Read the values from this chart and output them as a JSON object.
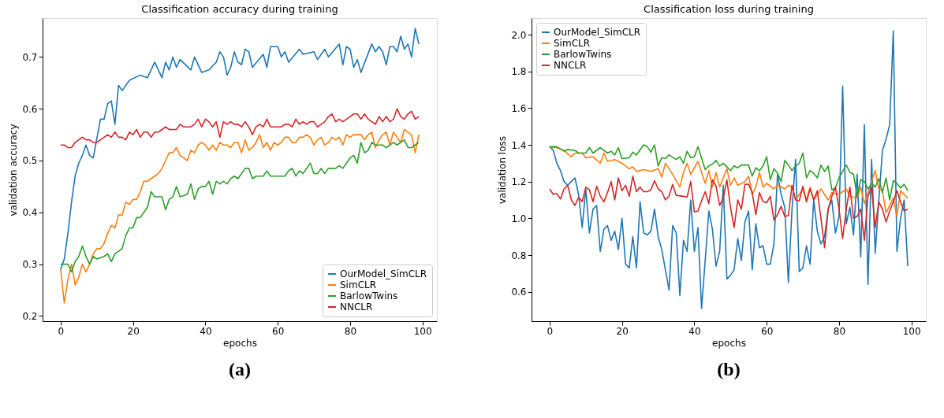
{
  "chart_data": [
    {
      "type": "line",
      "title": "Classification accuracy during training",
      "xlabel": "epochs",
      "ylabel": "validation accuracy",
      "xlim": [
        -5,
        104
      ],
      "xticks": [
        0,
        20,
        40,
        60,
        80,
        100
      ],
      "ylim": [
        0.19,
        0.775
      ],
      "yticks": [
        0.2,
        0.3,
        0.4,
        0.5,
        0.6,
        0.7
      ],
      "grid": false,
      "legend": "bottom right",
      "annotations": [
        "(a)"
      ],
      "series": [
        {
          "name": "OurModel_SimCLR",
          "color": "#1f77b4",
          "x": [
            0,
            1,
            2,
            3,
            4,
            5,
            6,
            7,
            8,
            9,
            11,
            12,
            13,
            14,
            15,
            16,
            17,
            19,
            22,
            24,
            26,
            28,
            29,
            30,
            31,
            32,
            33,
            36,
            37,
            39,
            41,
            43,
            44,
            45,
            46,
            47,
            48,
            49,
            50,
            51,
            52,
            53,
            56,
            57,
            58,
            60,
            61,
            62,
            63,
            66,
            67,
            70,
            71,
            73,
            74,
            77,
            78,
            79,
            80,
            81,
            82,
            83,
            86,
            87,
            88,
            89,
            90,
            91,
            92,
            93,
            94,
            95,
            96,
            97,
            98,
            99
          ],
          "values": [
            0.29,
            0.31,
            0.36,
            0.42,
            0.47,
            0.495,
            0.51,
            0.53,
            0.51,
            0.505,
            0.58,
            0.58,
            0.61,
            0.615,
            0.57,
            0.645,
            0.635,
            0.655,
            0.665,
            0.66,
            0.69,
            0.66,
            0.69,
            0.675,
            0.7,
            0.68,
            0.695,
            0.675,
            0.7,
            0.67,
            0.675,
            0.69,
            0.71,
            0.7,
            0.665,
            0.68,
            0.71,
            0.69,
            0.685,
            0.715,
            0.71,
            0.68,
            0.705,
            0.68,
            0.72,
            0.72,
            0.7,
            0.71,
            0.69,
            0.715,
            0.705,
            0.71,
            0.695,
            0.715,
            0.7,
            0.725,
            0.685,
            0.72,
            0.715,
            0.68,
            0.695,
            0.67,
            0.725,
            0.71,
            0.72,
            0.71,
            0.685,
            0.72,
            0.72,
            0.71,
            0.74,
            0.715,
            0.725,
            0.7,
            0.755,
            0.725
          ]
        },
        {
          "name": "SimCLR",
          "color": "#ff7f0e",
          "x": [
            0,
            1,
            2,
            3,
            4,
            5,
            6,
            7,
            8,
            9,
            10,
            11,
            12,
            13,
            14,
            15,
            16,
            17,
            18,
            19,
            20,
            21,
            22,
            23,
            24,
            25,
            26,
            27,
            28,
            29,
            30,
            31,
            32,
            33,
            34,
            35,
            36,
            37,
            38,
            39,
            40,
            41,
            42,
            43,
            44,
            45,
            46,
            47,
            48,
            49,
            50,
            51,
            52,
            53,
            54,
            55,
            56,
            57,
            58,
            59,
            60,
            61,
            62,
            63,
            64,
            65,
            66,
            67,
            68,
            69,
            70,
            71,
            72,
            73,
            74,
            75,
            76,
            77,
            78,
            79,
            80,
            81,
            82,
            83,
            84,
            85,
            86,
            87,
            88,
            89,
            90,
            91,
            92,
            93,
            94,
            95,
            96,
            97,
            98,
            99
          ],
          "values": [
            0.29,
            0.225,
            0.27,
            0.3,
            0.26,
            0.275,
            0.3,
            0.285,
            0.3,
            0.32,
            0.33,
            0.33,
            0.34,
            0.36,
            0.375,
            0.37,
            0.395,
            0.395,
            0.42,
            0.415,
            0.425,
            0.425,
            0.44,
            0.46,
            0.46,
            0.465,
            0.47,
            0.475,
            0.485,
            0.5,
            0.515,
            0.515,
            0.525,
            0.51,
            0.505,
            0.5,
            0.52,
            0.515,
            0.53,
            0.535,
            0.53,
            0.52,
            0.53,
            0.52,
            0.535,
            0.53,
            0.53,
            0.525,
            0.535,
            0.535,
            0.515,
            0.54,
            0.52,
            0.525,
            0.535,
            0.55,
            0.525,
            0.535,
            0.52,
            0.535,
            0.53,
            0.535,
            0.545,
            0.545,
            0.535,
            0.535,
            0.545,
            0.545,
            0.55,
            0.545,
            0.53,
            0.54,
            0.545,
            0.53,
            0.535,
            0.545,
            0.54,
            0.545,
            0.53,
            0.55,
            0.545,
            0.55,
            0.55,
            0.55,
            0.54,
            0.55,
            0.555,
            0.525,
            0.54,
            0.55,
            0.555,
            0.53,
            0.555,
            0.545,
            0.535,
            0.56,
            0.555,
            0.55,
            0.515,
            0.55
          ]
        },
        {
          "name": "BarlowTwins",
          "color": "#2ca02c",
          "x": [
            0,
            1,
            2,
            3,
            4,
            5,
            6,
            7,
            8,
            9,
            10,
            12,
            13,
            14,
            15,
            16,
            17,
            18,
            19,
            20,
            21,
            22,
            23,
            24,
            25,
            26,
            28,
            29,
            30,
            31,
            32,
            33,
            35,
            36,
            37,
            38,
            39,
            40,
            41,
            42,
            43,
            44,
            45,
            46,
            47,
            48,
            49,
            50,
            51,
            52,
            53,
            54,
            55,
            56,
            57,
            58,
            60,
            62,
            63,
            64,
            65,
            66,
            67,
            68,
            69,
            70,
            71,
            72,
            73,
            74,
            76,
            77,
            78,
            79,
            80,
            81,
            82,
            83,
            84,
            85,
            86,
            87,
            88,
            89,
            90,
            91,
            92,
            93,
            94,
            95,
            96,
            97,
            98,
            99
          ],
          "values": [
            0.3,
            0.3,
            0.3,
            0.285,
            0.305,
            0.315,
            0.335,
            0.315,
            0.3,
            0.315,
            0.31,
            0.315,
            0.32,
            0.305,
            0.32,
            0.325,
            0.33,
            0.355,
            0.37,
            0.37,
            0.39,
            0.39,
            0.4,
            0.41,
            0.44,
            0.43,
            0.43,
            0.405,
            0.425,
            0.43,
            0.45,
            0.43,
            0.435,
            0.455,
            0.425,
            0.445,
            0.45,
            0.45,
            0.46,
            0.435,
            0.46,
            0.455,
            0.46,
            0.455,
            0.465,
            0.47,
            0.465,
            0.475,
            0.485,
            0.485,
            0.465,
            0.47,
            0.47,
            0.47,
            0.48,
            0.47,
            0.47,
            0.47,
            0.48,
            0.485,
            0.47,
            0.48,
            0.475,
            0.485,
            0.495,
            0.475,
            0.475,
            0.485,
            0.475,
            0.485,
            0.485,
            0.49,
            0.485,
            0.495,
            0.505,
            0.51,
            0.495,
            0.535,
            0.515,
            0.52,
            0.535,
            0.53,
            0.53,
            0.53,
            0.525,
            0.53,
            0.535,
            0.53,
            0.535,
            0.54,
            0.525,
            0.525,
            0.53,
            0.535
          ]
        },
        {
          "name": "NNCLR",
          "color": "#d62728",
          "x": [
            0,
            1,
            2,
            3,
            4,
            5,
            6,
            7,
            8,
            9,
            10,
            11,
            12,
            13,
            14,
            15,
            16,
            17,
            18,
            19,
            20,
            21,
            22,
            23,
            24,
            25,
            26,
            27,
            28,
            29,
            30,
            32,
            33,
            34,
            35,
            36,
            37,
            38,
            39,
            40,
            41,
            42,
            43,
            44,
            45,
            46,
            47,
            48,
            49,
            50,
            51,
            52,
            53,
            54,
            55,
            56,
            57,
            58,
            59,
            60,
            61,
            62,
            63,
            64,
            65,
            66,
            67,
            68,
            69,
            70,
            71,
            72,
            73,
            74,
            75,
            76,
            77,
            78,
            79,
            80,
            81,
            82,
            83,
            84,
            85,
            86,
            87,
            88,
            89,
            90,
            91,
            92,
            93,
            94,
            95,
            96,
            97,
            98,
            99
          ],
          "values": [
            0.53,
            0.53,
            0.525,
            0.525,
            0.535,
            0.54,
            0.545,
            0.54,
            0.54,
            0.535,
            0.535,
            0.54,
            0.545,
            0.55,
            0.545,
            0.555,
            0.545,
            0.545,
            0.54,
            0.555,
            0.55,
            0.56,
            0.545,
            0.555,
            0.555,
            0.545,
            0.555,
            0.555,
            0.56,
            0.565,
            0.56,
            0.56,
            0.57,
            0.565,
            0.565,
            0.565,
            0.57,
            0.58,
            0.565,
            0.58,
            0.575,
            0.565,
            0.575,
            0.545,
            0.575,
            0.57,
            0.575,
            0.57,
            0.57,
            0.565,
            0.575,
            0.565,
            0.55,
            0.565,
            0.57,
            0.565,
            0.58,
            0.565,
            0.565,
            0.565,
            0.565,
            0.57,
            0.57,
            0.565,
            0.58,
            0.57,
            0.575,
            0.57,
            0.575,
            0.575,
            0.565,
            0.57,
            0.575,
            0.585,
            0.59,
            0.575,
            0.58,
            0.575,
            0.58,
            0.585,
            0.59,
            0.59,
            0.58,
            0.59,
            0.58,
            0.575,
            0.57,
            0.585,
            0.575,
            0.585,
            0.575,
            0.58,
            0.6,
            0.585,
            0.58,
            0.59,
            0.595,
            0.58,
            0.585
          ]
        }
      ]
    },
    {
      "type": "line",
      "title": "Classification loss during training",
      "xlabel": "epochs",
      "ylabel": "validation loss",
      "xlim": [
        -5,
        104
      ],
      "xticks": [
        0,
        20,
        40,
        60,
        80,
        100
      ],
      "ylim": [
        0.44,
        2.09
      ],
      "yticks": [
        0.6,
        0.8,
        {
          "value": 1,
          "label": "1.0"
        },
        1.2,
        1.4,
        1.6,
        1.8,
        {
          "value": 2,
          "label": "2.0"
        }
      ],
      "grid": false,
      "legend": "top left",
      "annotations": [
        "(b)"
      ],
      "series": [
        {
          "name": "OurModel_SimCLR",
          "color": "#1f77b4",
          "x": [
            0,
            1,
            2,
            3,
            4,
            5,
            6,
            7,
            8,
            9,
            10,
            11,
            12,
            13,
            14,
            15,
            16,
            17,
            18,
            19,
            20,
            21,
            22,
            23,
            24,
            25,
            26,
            27,
            28,
            29,
            30,
            31,
            32,
            33,
            34,
            35,
            36,
            37,
            38,
            39,
            40,
            41,
            42,
            43,
            44,
            45,
            46,
            47,
            48,
            49,
            50,
            51,
            52,
            53,
            54,
            55,
            56,
            57,
            58,
            59,
            60,
            61,
            62,
            63,
            64,
            65,
            66,
            67,
            68,
            69,
            70,
            71,
            72,
            73,
            74,
            75,
            76,
            77,
            78,
            79,
            80,
            81,
            82,
            83,
            84,
            85,
            86,
            87,
            88,
            89,
            90,
            91,
            92,
            93,
            94,
            95,
            96,
            97,
            98,
            99
          ],
          "values": [
            1.39,
            1.37,
            1.3,
            1.26,
            1.2,
            1.18,
            1.2,
            1.22,
            1.13,
            0.95,
            1.16,
            0.92,
            1.05,
            1.07,
            0.82,
            0.94,
            0.96,
            0.88,
            0.93,
            0.83,
            1.0,
            0.75,
            0.73,
            0.9,
            0.73,
            1.09,
            0.92,
            0.91,
            0.93,
            1.05,
            0.9,
            0.83,
            0.72,
            0.61,
            0.96,
            0.92,
            0.58,
            0.88,
            0.82,
            1.1,
            0.82,
            0.95,
            0.51,
            0.77,
            1.04,
            0.94,
            0.74,
            0.82,
            1.18,
            0.67,
            0.69,
            0.72,
            0.89,
            0.77,
            0.98,
            1.04,
            0.72,
            0.97,
            0.84,
            0.85,
            0.75,
            0.75,
            0.86,
            1.24,
            1.13,
            1.06,
            0.65,
            1.05,
            1.32,
            0.71,
            0.73,
            0.85,
            0.75,
            1.1,
            0.93,
            0.86,
            0.9,
            1.05,
            1.1,
            0.92,
            1.01,
            1.72,
            0.97,
            1.06,
            0.91,
            1.24,
            0.79,
            1.51,
            0.64,
            1.32,
            0.81,
            1.1,
            1.37,
            1.43,
            1.51,
            2.02,
            0.82,
            1.0,
            1.1,
            0.74
          ]
        },
        {
          "name": "SimCLR",
          "color": "#ff7f0e",
          "x": [
            0,
            2,
            4,
            5,
            6,
            7,
            9,
            10,
            12,
            14,
            15,
            16,
            18,
            20,
            22,
            23,
            24,
            26,
            28,
            30,
            31,
            32,
            34,
            36,
            37,
            38,
            39,
            41,
            43,
            44,
            45,
            46,
            47,
            49,
            50,
            51,
            52,
            54,
            55,
            56,
            57,
            58,
            59,
            60,
            62,
            63,
            65,
            66,
            67,
            68,
            70,
            71,
            72,
            73,
            75,
            77,
            78,
            80,
            82,
            83,
            85,
            86,
            87,
            89,
            90,
            91,
            92,
            93,
            95,
            96,
            97,
            99
          ],
          "values": [
            1.385,
            1.385,
            1.37,
            1.35,
            1.335,
            1.355,
            1.355,
            1.33,
            1.335,
            1.3,
            1.355,
            1.31,
            1.32,
            1.3,
            1.27,
            1.28,
            1.255,
            1.265,
            1.255,
            1.27,
            1.225,
            1.3,
            1.24,
            1.17,
            1.25,
            1.3,
            1.24,
            1.31,
            1.19,
            1.26,
            1.17,
            1.25,
            1.17,
            1.27,
            1.18,
            1.22,
            1.18,
            1.2,
            1.23,
            1.13,
            1.17,
            1.25,
            1.17,
            1.19,
            1.16,
            1.18,
            1.16,
            1.18,
            1.17,
            1.1,
            1.16,
            1.1,
            1.17,
            1.1,
            1.16,
            1.1,
            1.14,
            1.13,
            1.16,
            1.12,
            1.11,
            1.17,
            1.08,
            1.2,
            1.26,
            1.16,
            1.15,
            1.03,
            1.11,
            1.01,
            1.15,
            1.11
          ]
        },
        {
          "name": "BarlowTwins",
          "color": "#2ca02c",
          "x": [
            0,
            2,
            4,
            5,
            7,
            8,
            10,
            11,
            12,
            14,
            16,
            17,
            18,
            19,
            20,
            22,
            23,
            24,
            26,
            27,
            28,
            29,
            30,
            31,
            32,
            33,
            35,
            36,
            37,
            38,
            39,
            40,
            41,
            43,
            44,
            45,
            46,
            47,
            48,
            50,
            51,
            52,
            53,
            55,
            56,
            57,
            58,
            59,
            60,
            61,
            62,
            63,
            64,
            65,
            66,
            67,
            68,
            69,
            70,
            71,
            72,
            73,
            74,
            75,
            76,
            77,
            78,
            79,
            80,
            81,
            82,
            83,
            84,
            85,
            86,
            87,
            88,
            89,
            90,
            91,
            92,
            93,
            94,
            95,
            96,
            97,
            98,
            99
          ],
          "values": [
            1.39,
            1.39,
            1.365,
            1.375,
            1.37,
            1.355,
            1.355,
            1.385,
            1.355,
            1.385,
            1.355,
            1.365,
            1.345,
            1.385,
            1.325,
            1.33,
            1.36,
            1.345,
            1.4,
            1.39,
            1.36,
            1.4,
            1.285,
            1.33,
            1.325,
            1.345,
            1.32,
            1.335,
            1.3,
            1.365,
            1.33,
            1.335,
            1.39,
            1.265,
            1.285,
            1.295,
            1.315,
            1.285,
            1.3,
            1.26,
            1.285,
            1.275,
            1.29,
            1.29,
            1.23,
            1.275,
            1.26,
            1.285,
            1.335,
            1.21,
            1.27,
            1.245,
            1.2,
            1.315,
            1.29,
            1.26,
            1.285,
            1.3,
            1.355,
            1.22,
            1.26,
            1.245,
            1.22,
            1.29,
            1.255,
            1.285,
            1.155,
            1.165,
            1.22,
            1.255,
            1.29,
            1.25,
            1.24,
            1.12,
            1.21,
            1.2,
            1.16,
            1.19,
            1.17,
            1.215,
            1.14,
            1.22,
            1.1,
            1.205,
            1.19,
            1.165,
            1.185,
            1.15
          ]
        },
        {
          "name": "NNCLR",
          "color": "#d62728",
          "x": [
            0,
            1,
            2,
            3,
            4,
            5,
            6,
            7,
            8,
            9,
            10,
            11,
            12,
            13,
            14,
            15,
            16,
            17,
            18,
            19,
            20,
            21,
            22,
            23,
            24,
            25,
            26,
            27,
            28,
            29,
            30,
            31,
            32,
            33,
            34,
            35,
            37,
            38,
            39,
            40,
            41,
            42,
            43,
            44,
            45,
            46,
            47,
            48,
            49,
            50,
            51,
            52,
            53,
            54,
            55,
            56,
            57,
            58,
            59,
            60,
            61,
            62,
            63,
            64,
            65,
            66,
            67,
            68,
            69,
            70,
            71,
            72,
            73,
            74,
            75,
            76,
            77,
            78,
            79,
            80,
            81,
            82,
            83,
            84,
            85,
            86,
            87,
            88,
            89,
            90,
            91,
            92,
            93,
            94,
            95,
            96,
            97,
            98,
            99
          ],
          "values": [
            1.16,
            1.13,
            1.135,
            1.105,
            1.16,
            1.18,
            1.1,
            1.07,
            1.115,
            1.09,
            1.17,
            1.155,
            1.09,
            1.175,
            1.12,
            1.09,
            1.14,
            1.2,
            1.1,
            1.22,
            1.15,
            1.18,
            1.12,
            1.23,
            1.145,
            1.17,
            1.145,
            1.145,
            1.155,
            1.205,
            1.16,
            1.145,
            1.1,
            1.12,
            1.185,
            1.125,
            1.12,
            1.115,
            1.2,
            1.035,
            1.04,
            1.095,
            1.145,
            1.08,
            1.21,
            1.175,
            1.07,
            1.11,
            1.21,
            1.06,
            0.95,
            1.1,
            1.05,
            1.185,
            1.185,
            1.14,
            1.02,
            1.14,
            1.09,
            1.085,
            1.12,
            0.99,
            1.02,
            1.065,
            1.01,
            1.015,
            1.18,
            1.1,
            1.095,
            1.175,
            1.09,
            1.16,
            1.1,
            1.15,
            1.0,
            0.84,
            1.05,
            1.12,
            1.17,
            1.05,
            0.89,
            1.05,
            1.17,
            1.0,
            1.01,
            1.05,
            0.88,
            1.12,
            1.17,
            0.95,
            1.09,
            1.05,
            0.98,
            1.04,
            1.09,
            1.15,
            1.09,
            1.04,
            1.05
          ]
        }
      ]
    }
  ]
}
